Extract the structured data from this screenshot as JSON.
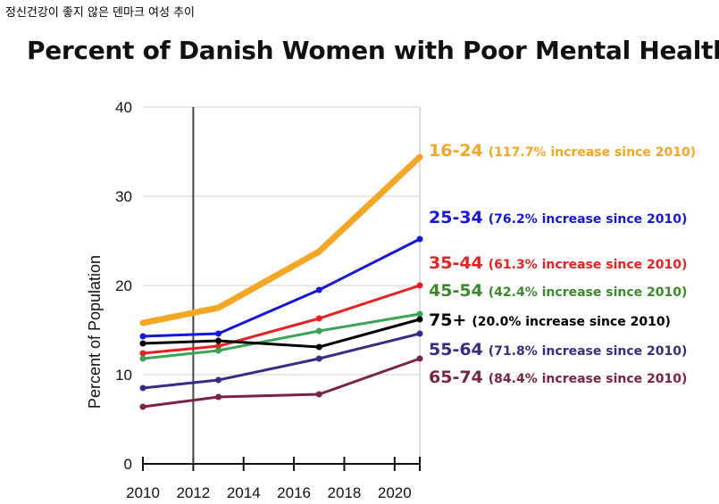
{
  "caption": "정신건강이 좋지 않은 덴마크 여성 추이",
  "chart_data": {
    "type": "line",
    "title": "Percent of Danish Women with Poor Mental Health",
    "xlabel": "",
    "ylabel": "Percent of Population",
    "xlim": [
      2010,
      2021
    ],
    "ylim": [
      0,
      40
    ],
    "x_ticks": [
      2010,
      2012,
      2014,
      2016,
      2018,
      2020
    ],
    "y_ticks": [
      0,
      10,
      20,
      30,
      40
    ],
    "reference_line_x": 2012,
    "x": [
      2010,
      2013,
      2017,
      2021
    ],
    "series": [
      {
        "name": "16-24",
        "note": "(117.7% increase since 2010)",
        "color": "#f5a623",
        "values": [
          15.8,
          17.5,
          23.8,
          34.4
        ]
      },
      {
        "name": "25-34",
        "note": "(76.2% increase since 2010)",
        "color": "#1515e0",
        "values": [
          14.3,
          14.6,
          19.5,
          25.2
        ]
      },
      {
        "name": "35-44",
        "note": "(61.3% increase since 2010)",
        "color": "#e82020",
        "values": [
          12.4,
          13.2,
          16.3,
          20.0
        ]
      },
      {
        "name": "45-54",
        "note": "(42.4% increase since 2010)",
        "color": "#3aa655",
        "values": [
          11.8,
          12.7,
          14.9,
          16.8
        ]
      },
      {
        "name": "75+",
        "note": "(20.0% increase since 2010)",
        "color": "#000000",
        "values": [
          13.5,
          13.8,
          13.1,
          16.2
        ]
      },
      {
        "name": "55-64",
        "note": "(71.8% increase since 2010)",
        "color": "#3a2a85",
        "values": [
          8.5,
          9.4,
          11.8,
          14.6
        ]
      },
      {
        "name": "65-74",
        "note": "(84.4% increase since 2010)",
        "color": "#7a2248",
        "values": [
          6.4,
          7.5,
          7.8,
          11.8
        ]
      }
    ]
  },
  "label_colors": {
    "16-24": "#f5a623",
    "25-34": "#1515e0",
    "35-44": "#e82020",
    "45-54": "#3a8a2a",
    "75+": "#000000",
    "55-64": "#3a2a85",
    "65-74": "#7a2248"
  }
}
